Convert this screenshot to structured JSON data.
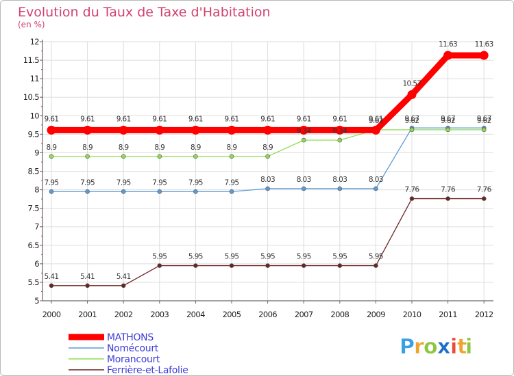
{
  "chart_data": {
    "type": "line",
    "title": "Evolution du Taux de Taxe d'Habitation",
    "subtitle": "(en %)",
    "xlabel": "",
    "ylabel": "",
    "ylim": [
      5,
      12
    ],
    "yticks": [
      5,
      5.5,
      6,
      6.5,
      7,
      7.5,
      8,
      8.5,
      9,
      9.5,
      10,
      10.5,
      11,
      11.5,
      12
    ],
    "ytick_labels": [
      "5",
      "5.5",
      "6",
      "6.5",
      "7",
      "7.5",
      "8",
      "8.5",
      "9",
      "9.5",
      "10",
      "10.5",
      "11",
      "11.5",
      "12"
    ],
    "categories": [
      "2000",
      "2001",
      "2002",
      "2003",
      "2004",
      "2005",
      "2006",
      "2007",
      "2008",
      "2009",
      "2010",
      "2011",
      "2012"
    ],
    "grid": true,
    "legend_position": "bottom-left",
    "series": [
      {
        "name": "MATHONS",
        "color": "#ff0000",
        "values": [
          9.61,
          9.61,
          9.61,
          9.61,
          9.61,
          9.61,
          9.61,
          9.61,
          9.61,
          9.61,
          10.57,
          11.63,
          11.63
        ],
        "labels": [
          "9.61",
          "9.61",
          "9.61",
          "9.61",
          "9.61",
          "9.61",
          "9.61",
          "9.61",
          "9.61",
          "9.61",
          "10.57",
          "11.63",
          "11.63"
        ]
      },
      {
        "name": "Nomécourt",
        "color": "#5b9bd5",
        "values": [
          7.95,
          7.95,
          7.95,
          7.95,
          7.95,
          7.95,
          8.03,
          8.03,
          8.03,
          8.03,
          9.67,
          9.67,
          9.67
        ],
        "labels": [
          "7.95",
          "7.95",
          "7.95",
          "7.95",
          "7.95",
          "7.95",
          "8.03",
          "8.03",
          "8.03",
          "8.03",
          "9.67",
          "9.67",
          "9.67"
        ]
      },
      {
        "name": "Morancourt",
        "color": "#8fdc50",
        "values": [
          8.9,
          8.9,
          8.9,
          8.9,
          8.9,
          8.9,
          8.9,
          9.34,
          9.34,
          9.62,
          9.62,
          9.62,
          9.62
        ],
        "labels": [
          "8.9",
          "8.9",
          "8.9",
          "8.9",
          "8.9",
          "8.9",
          "8.9",
          "9.34",
          "9.34",
          "9.62",
          "9.62",
          "9.62",
          "9.62"
        ]
      },
      {
        "name": "Ferrière-et-Lafolie",
        "color": "#6b2424",
        "values": [
          5.41,
          5.41,
          5.41,
          5.95,
          5.95,
          5.95,
          5.95,
          5.95,
          5.95,
          5.95,
          7.76,
          7.76,
          7.76
        ],
        "labels": [
          "5.41",
          "5.41",
          "5.41",
          "5.95",
          "5.95",
          "5.95",
          "5.95",
          "5.95",
          "5.95",
          "5.95",
          "7.76",
          "7.76",
          "7.76"
        ]
      }
    ]
  },
  "logo": {
    "letters": [
      "P",
      "r",
      "o",
      "x",
      "i",
      "t",
      "i"
    ],
    "colors": [
      "#3aa0e6",
      "#f2a22c",
      "#8cc63f",
      "#1d6fc4",
      "#e84a3c",
      "#f2a22c",
      "#8cc63f"
    ]
  }
}
